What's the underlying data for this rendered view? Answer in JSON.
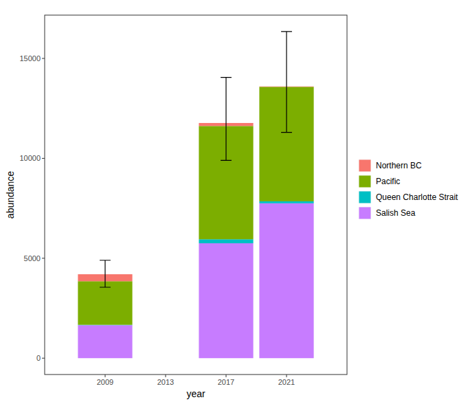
{
  "chart_data": {
    "type": "bar",
    "stacked": true,
    "x_label": "year",
    "y_label": "abundance",
    "x": [
      2009,
      2013,
      2017,
      2021
    ],
    "series": [
      {
        "name": "Northern BC",
        "color": "#F8766D",
        "values": [
          350,
          null,
          150,
          20
        ]
      },
      {
        "name": "Pacific",
        "color": "#7CAE00",
        "values": [
          2180,
          null,
          5670,
          5730
        ]
      },
      {
        "name": "Queen Charlotte Strait",
        "color": "#00BFC4",
        "values": [
          20,
          null,
          200,
          100
        ]
      },
      {
        "name": "Salish Sea",
        "color": "#C77CFF",
        "values": [
          1650,
          null,
          5750,
          7750
        ]
      }
    ],
    "error_bars": [
      [
        3550,
        4900
      ],
      null,
      [
        9900,
        14050
      ],
      [
        11300,
        16350
      ]
    ],
    "xlim": [
      2005,
      2025
    ],
    "xticks": [
      2009,
      2013,
      2017,
      2021
    ],
    "ylim": [
      -818,
      17168
    ],
    "yticks": [
      0,
      5000,
      10000,
      15000
    ],
    "grid": false,
    "legend": "right"
  }
}
